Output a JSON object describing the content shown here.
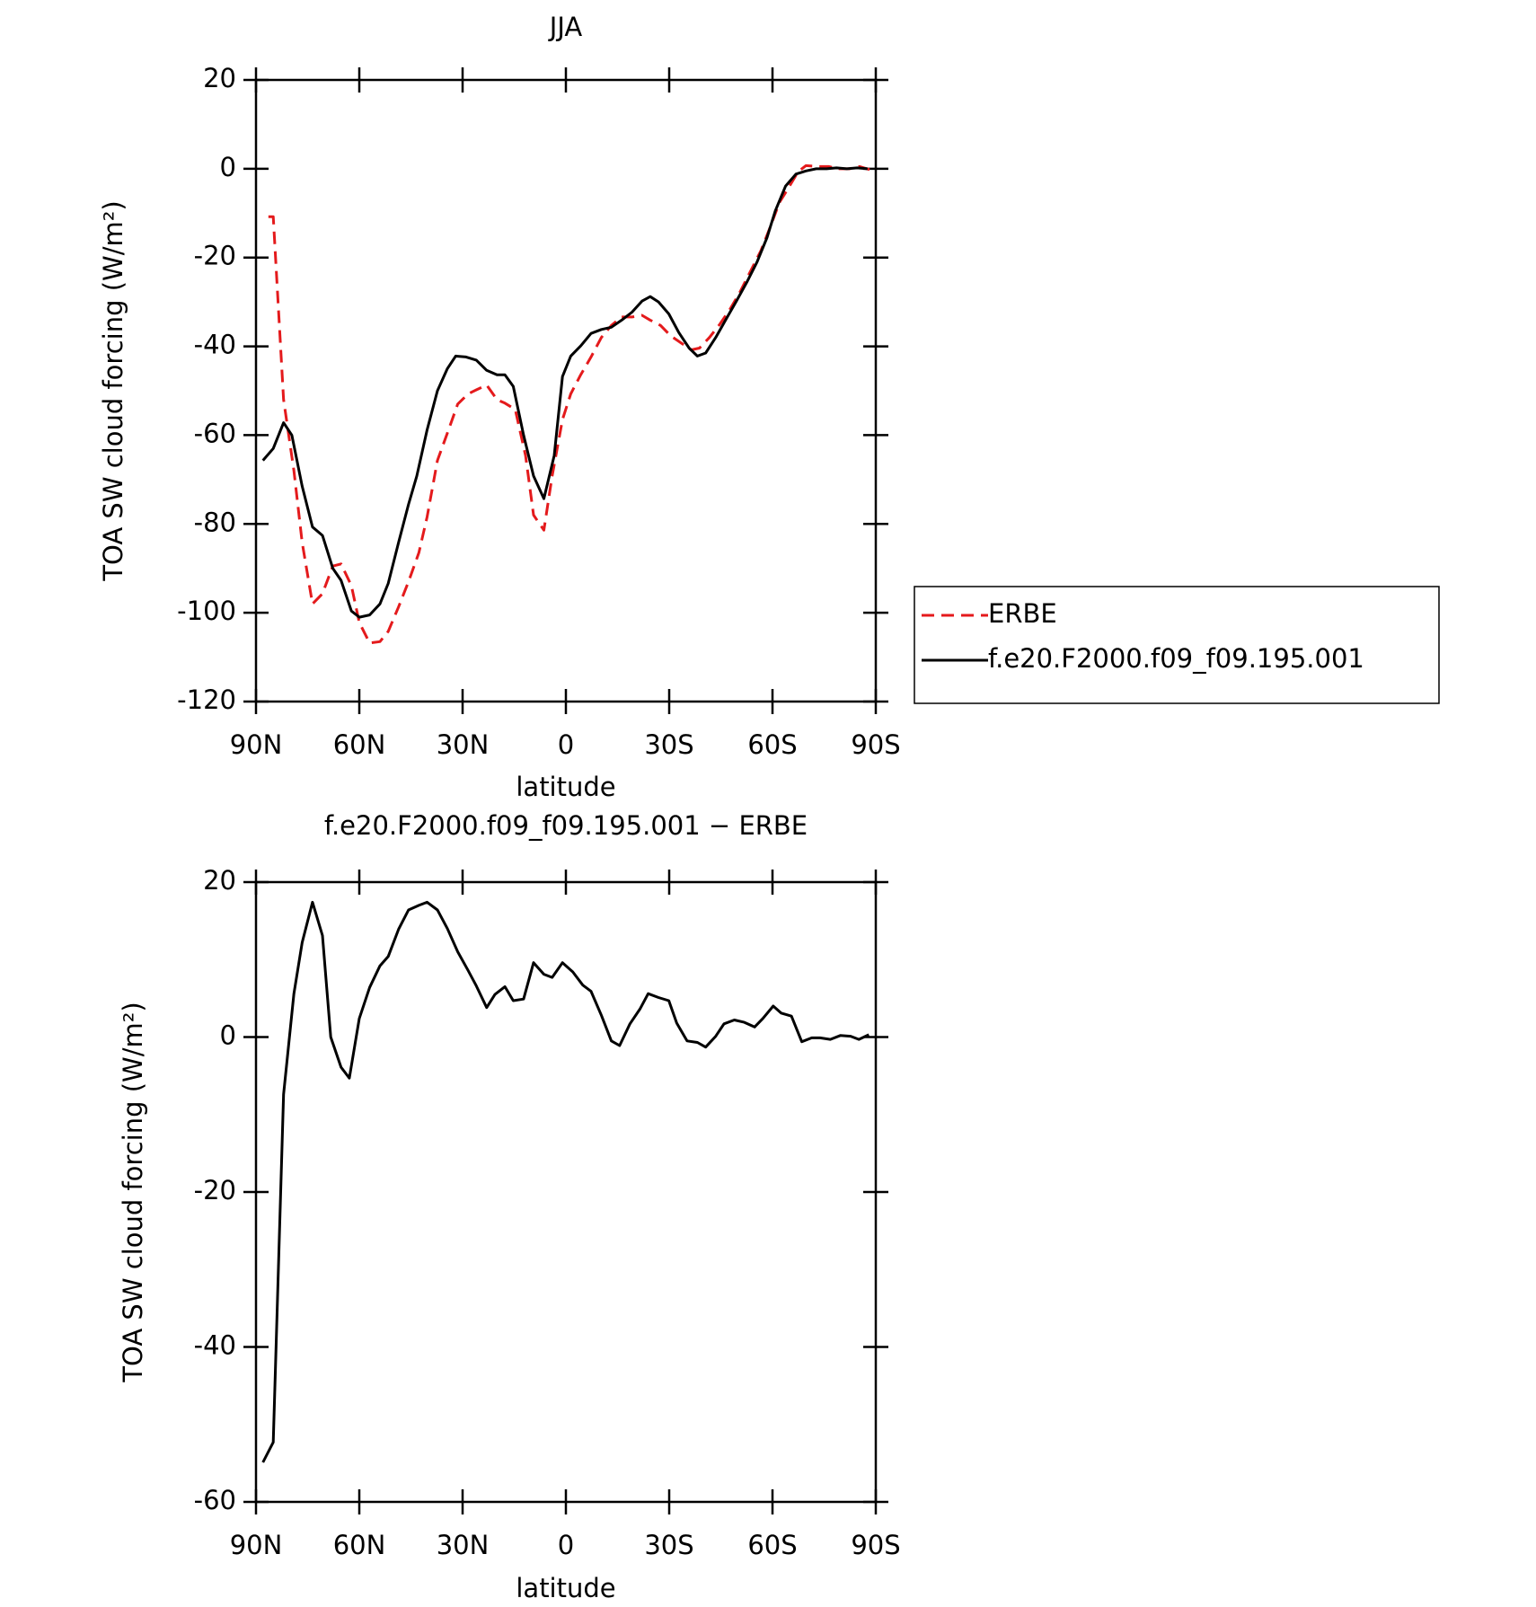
{
  "chart_data": [
    {
      "type": "line",
      "title": "JJA",
      "x_label": "latitude",
      "y_label": "TOA SW cloud forcing (W/m²)",
      "xlim": [
        90,
        -90
      ],
      "xticks": [
        {
          "value": 90,
          "label": "90N"
        },
        {
          "value": 60,
          "label": "60N"
        },
        {
          "value": 30,
          "label": "30N"
        },
        0,
        {
          "value": -30,
          "label": "30S"
        },
        {
          "value": -60,
          "label": "60S"
        },
        {
          "value": -90,
          "label": "90S"
        }
      ],
      "ylim": [
        -120,
        20
      ],
      "yticks": [
        -120,
        -100,
        -80,
        -60,
        -40,
        -20,
        0,
        20
      ],
      "legend": "right",
      "series": [
        {
          "name": "ERBE",
          "color": "#e41a1c",
          "linestyle": "dashed",
          "x": [
            86.4,
            85,
            82,
            79,
            76.6,
            73.6,
            70.7,
            67.7,
            65.3,
            62.3,
            60,
            57,
            54,
            51.6,
            48.6,
            45.7,
            42.7,
            40.3,
            37.3,
            34.4,
            31.4,
            28.4,
            26,
            23,
            20,
            17.7,
            14.7,
            11.7,
            9.4,
            6.4,
            4,
            1,
            -1.4,
            -4.3,
            -7.3,
            -10.3,
            -13.2,
            -16.2,
            -19.2,
            -22.1,
            -24.5,
            -27.5,
            -30.4,
            -33.4,
            -36.4,
            -38.8,
            -41.7,
            -44.7,
            -47.7,
            -50.6,
            -53.6,
            -56.6,
            -59,
            -62,
            -64.4,
            -67.4,
            -69.7,
            -73.3,
            -76.3,
            -79.3,
            -82.3,
            -85.3,
            -88.2
          ],
          "values": [
            -10.8,
            -10.8,
            -52,
            -68,
            -84.2,
            -98,
            -95.7,
            -89.5,
            -89,
            -93.9,
            -102.2,
            -106.8,
            -106.5,
            -104.2,
            -98.7,
            -93,
            -86.5,
            -78.4,
            -65.7,
            -59.5,
            -53,
            -50.7,
            -49.8,
            -48.7,
            -52,
            -52.8,
            -54.2,
            -64.6,
            -78,
            -81.4,
            -69.2,
            -56.5,
            -50.7,
            -46.4,
            -42.4,
            -38,
            -35.3,
            -33.4,
            -33.4,
            -33,
            -34.1,
            -35.3,
            -37.6,
            -39.2,
            -40.8,
            -40.4,
            -38,
            -35,
            -31.6,
            -27.7,
            -23.1,
            -18.5,
            -13.8,
            -7.6,
            -4.6,
            -0.7,
            0.7,
            0.5,
            0.5,
            0,
            0,
            0.5,
            -0.2
          ]
        },
        {
          "name": "f.e20.F2000.f09_f09.195.001",
          "color": "#000000",
          "linestyle": "solid",
          "x": [
            88,
            85,
            82,
            79.6,
            76.6,
            73.6,
            70.7,
            67.7,
            65.3,
            62.3,
            60,
            57,
            54,
            51.6,
            48.6,
            45.7,
            43.3,
            40.3,
            37.3,
            34.4,
            32,
            29,
            26,
            23,
            20,
            17.7,
            15.3,
            12.3,
            9.4,
            6.4,
            3.4,
            1,
            -1.4,
            -4.3,
            -7.3,
            -10.3,
            -13.2,
            -16.2,
            -19.2,
            -22.1,
            -24.5,
            -26.9,
            -29.9,
            -32.8,
            -35.8,
            -38.2,
            -40.6,
            -43.5,
            -46.5,
            -49.5,
            -52.5,
            -55.5,
            -58.4,
            -60.8,
            -63.8,
            -66.8,
            -69.7,
            -72.7,
            -75.7,
            -78.6,
            -81.6,
            -84.6,
            -87.6
          ],
          "values": [
            -65.7,
            -63,
            -57.2,
            -60,
            -71.5,
            -80.7,
            -82.6,
            -90,
            -92.7,
            -99.6,
            -101,
            -100.5,
            -98,
            -93.4,
            -84.2,
            -75.6,
            -69.2,
            -58.8,
            -50,
            -45,
            -42.2,
            -42.4,
            -43.1,
            -45.4,
            -46.4,
            -46.4,
            -49,
            -60,
            -69.2,
            -74.3,
            -64.6,
            -46.8,
            -42.2,
            -39.9,
            -37.1,
            -36.2,
            -35.7,
            -34.1,
            -32.3,
            -29.8,
            -28.8,
            -30,
            -32.7,
            -36.9,
            -40.4,
            -42.2,
            -41.5,
            -38,
            -33.9,
            -29.8,
            -25.6,
            -21,
            -15.5,
            -9.5,
            -3.9,
            -1.2,
            -0.5,
            0,
            0,
            0.2,
            0,
            0.2,
            0
          ]
        }
      ]
    },
    {
      "type": "line",
      "title": "f.e20.F2000.f09_f09.195.001 − ERBE",
      "x_label": "latitude",
      "y_label": "TOA SW cloud forcing (W/m²)",
      "xlim": [
        90,
        -90
      ],
      "xticks": [
        {
          "value": 90,
          "label": "90N"
        },
        {
          "value": 60,
          "label": "60N"
        },
        {
          "value": 30,
          "label": "30N"
        },
        0,
        {
          "value": -30,
          "label": "30S"
        },
        {
          "value": -60,
          "label": "60S"
        },
        {
          "value": -90,
          "label": "90S"
        }
      ],
      "ylim": [
        -60,
        20
      ],
      "yticks": [
        -60,
        -40,
        -20,
        0,
        20
      ],
      "color": "#000000",
      "x": [
        88,
        85,
        82,
        79,
        76.6,
        73.6,
        70.7,
        68.3,
        65.3,
        62.9,
        60,
        57,
        54,
        51.6,
        48.6,
        45.7,
        42.7,
        40.3,
        37.3,
        34.4,
        31.4,
        28.4,
        26,
        23,
        20.6,
        17.7,
        15.3,
        12.3,
        9.4,
        6.4,
        4,
        1,
        -2,
        -4.9,
        -7.3,
        -10.3,
        -13.2,
        -15.6,
        -18.6,
        -21.5,
        -23.9,
        -26.9,
        -29.9,
        -32.2,
        -35.2,
        -38.2,
        -40.6,
        -43.5,
        -45.9,
        -48.9,
        -51.8,
        -54.8,
        -57.2,
        -60.2,
        -62.5,
        -65.5,
        -68.5,
        -71.4,
        -73.8,
        -76.8,
        -79.7,
        -82.7,
        -85.1,
        -88
      ],
      "values": [
        -54.9,
        -52.3,
        -7.4,
        5.6,
        12.2,
        17.4,
        13.1,
        0,
        -3.9,
        -5.3,
        2.4,
        6.4,
        9.2,
        10.4,
        13.9,
        16.4,
        17,
        17.4,
        16.4,
        14,
        11,
        8.6,
        6.6,
        3.8,
        5.5,
        6.5,
        4.7,
        4.9,
        9.6,
        8.1,
        7.7,
        9.6,
        8.4,
        6.7,
        5.9,
        2.8,
        -0.5,
        -1.1,
        1.7,
        3.6,
        5.6,
        5.1,
        4.7,
        1.8,
        -0.5,
        -0.7,
        -1.3,
        0.1,
        1.7,
        2.2,
        1.9,
        1.3,
        2.4,
        4,
        3.1,
        2.7,
        -0.6,
        -0.1,
        -0.1,
        -0.3,
        0.2,
        0.1,
        -0.3,
        0.3
      ]
    }
  ]
}
